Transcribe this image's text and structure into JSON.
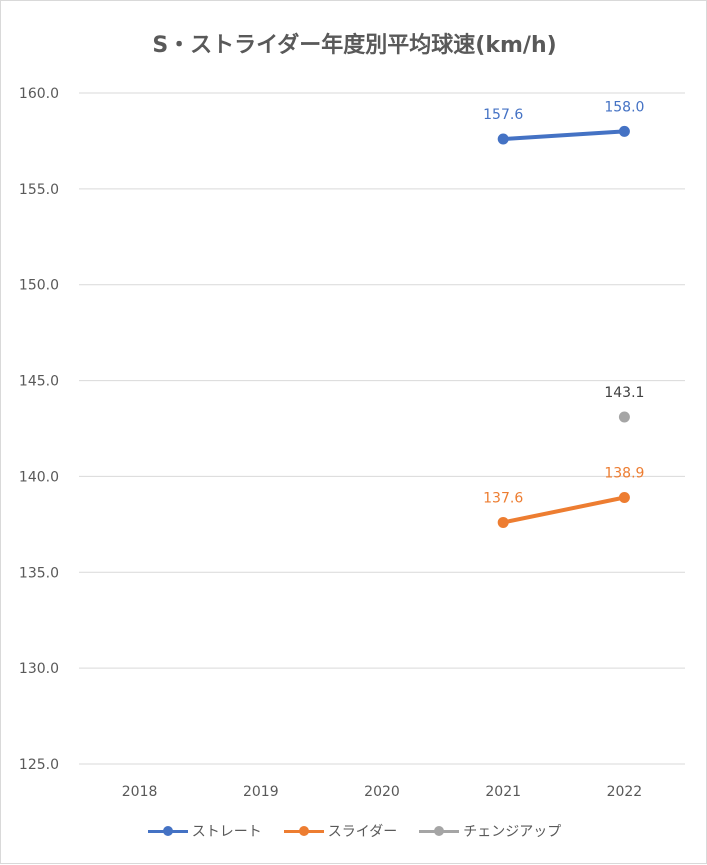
{
  "chart_data": {
    "type": "line",
    "title": "S・ストライダー年度別平均球速(km/h)",
    "xlabel": "",
    "ylabel": "",
    "categories": [
      "2018",
      "2019",
      "2020",
      "2021",
      "2022"
    ],
    "ylim": [
      125,
      160
    ],
    "yticks": [
      "125.0",
      "130.0",
      "135.0",
      "140.0",
      "145.0",
      "150.0",
      "155.0",
      "160.0"
    ],
    "grid": true,
    "legend_position": "bottom",
    "series": [
      {
        "name": "ストレート",
        "color": "#4472c4",
        "values": [
          null,
          null,
          null,
          157.6,
          158.0
        ],
        "labels": [
          null,
          null,
          null,
          "157.6",
          "158.0"
        ]
      },
      {
        "name": "スライダー",
        "color": "#ed7d31",
        "values": [
          null,
          null,
          null,
          137.6,
          138.9
        ],
        "labels": [
          null,
          null,
          null,
          "137.6",
          "138.9"
        ]
      },
      {
        "name": "チェンジアップ",
        "color": "#a5a5a5",
        "label_color": "#404040",
        "values": [
          null,
          null,
          null,
          null,
          143.1
        ],
        "labels": [
          null,
          null,
          null,
          null,
          "143.1"
        ]
      }
    ]
  }
}
